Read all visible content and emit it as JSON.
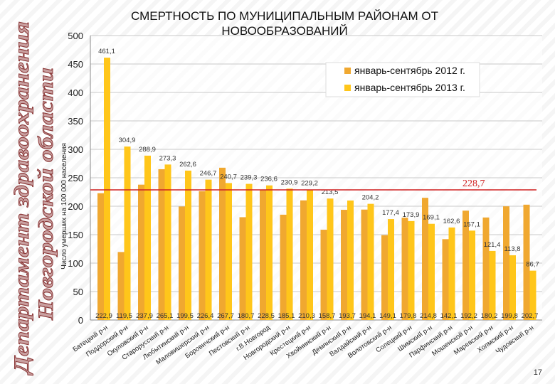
{
  "header": {
    "side_title_line1": "Департамент здравоохранения",
    "side_title_line2": "Новгородской области"
  },
  "chart_data": {
    "type": "bar",
    "title": "СМЕРТНОСТЬ ПО МУНИЦИПАЛЬНЫМ РАЙОНАМ ОТ НОВООБРАЗОВАНИЙ",
    "title_line1": "СМЕРТНОСТЬ ПО МУНИЦИПАЛЬНЫМ РАЙОНАМ ОТ",
    "title_line2": "НОВООБРАЗОВАНИЙ",
    "ylabel": "Число умерших на 100 000 населения",
    "xlabel": "",
    "ylim": [
      0,
      500
    ],
    "yticks": [
      0,
      50,
      100,
      150,
      200,
      250,
      300,
      350,
      400,
      450,
      500
    ],
    "grid": true,
    "legend_position": "top-right",
    "categories": [
      "Батецкий р-н",
      "Поддорский р-н",
      "Окуловский р-н",
      "Старорусский р-н",
      "Любытинский р-н",
      "Маловишерский р-н",
      "Боровичский р-н",
      "Пестовский р-н",
      "г.В.Новгород",
      "Новгородский р-н",
      "Крестецкий р-н",
      "Хвойнинский р-н",
      "Демянский р-н",
      "Валдайский р-н",
      "Волотовский р-н",
      "Солецкий р-н",
      "Шимский р-н",
      "Парфинский р-н",
      "Мошенской р-н",
      "Маревский р-н",
      "Холмский р-н",
      "Чудовский р-н"
    ],
    "series": [
      {
        "name": "январь-сентябрь 2012 г.",
        "color": "#f0a830",
        "values": [
          222.9,
          119.5,
          237.9,
          265.1,
          199.5,
          226.4,
          267.7,
          180.7,
          228.5,
          185.1,
          210.3,
          158.7,
          193.7,
          194.1,
          149.1,
          179.8,
          214.8,
          142.1,
          192.2,
          180.2,
          199.8,
          202.7
        ]
      },
      {
        "name": "январь-сентябрь 2013 г.",
        "color": "#ffc61a",
        "values": [
          461.1,
          304.9,
          288.9,
          273.3,
          262.6,
          246.7,
          240.7,
          239.3,
          236.6,
          230.9,
          229.2,
          213.5,
          210,
          204.2,
          177.4,
          173.9,
          169.1,
          162.6,
          157.1,
          121.4,
          113.8,
          86.7
        ]
      }
    ],
    "labels_2012": [
      "222,9",
      "119,5",
      "237,9",
      "265,1",
      "199,5",
      "226,4",
      "267,7",
      "180,7",
      "228,5",
      "185,1",
      "210,3",
      "158,7",
      "193,7",
      "194,1",
      "149,1",
      "179,8",
      "214,8",
      "142,1",
      "192,2",
      "180,2",
      "199,8",
      "202,7"
    ],
    "labels_2013": [
      "461,1",
      "304,9",
      "288,9",
      "273,3",
      "262,6",
      "246,7",
      "240,7",
      "239,3",
      "236,6",
      "230,9",
      "229,2",
      "213,5",
      "",
      "204,2",
      "177,4",
      "173,9",
      "169,1",
      "162,6",
      "157,1",
      "121,4",
      "113,8",
      "86,7"
    ],
    "reference_line": {
      "value": 228.7,
      "label": "228,7",
      "color": "#d02020"
    }
  },
  "footer": {
    "page_number": "17"
  }
}
